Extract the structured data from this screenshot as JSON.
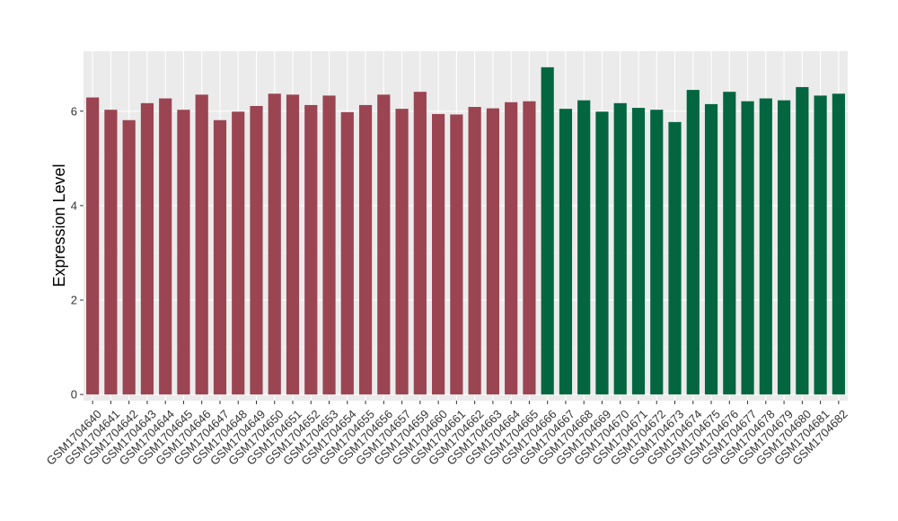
{
  "chart_data": {
    "type": "bar",
    "ylabel": "Expression Level",
    "xlabel": "",
    "ylim": [
      -0.13,
      7.27
    ],
    "yticks": [
      0,
      2,
      4,
      6
    ],
    "grid": true,
    "colors": {
      "panel_background": "#ebebeb",
      "grid_major": "#ffffff",
      "group_1": "#9b4452",
      "group_2": "#036641"
    },
    "categories": [
      "GSM1704640",
      "GSM1704641",
      "GSM1704642",
      "GSM1704643",
      "GSM1704644",
      "GSM1704645",
      "GSM1704646",
      "GSM1704647",
      "GSM1704648",
      "GSM1704649",
      "GSM1704650",
      "GSM1704651",
      "GSM1704652",
      "GSM1704653",
      "GSM1704654",
      "GSM1704655",
      "GSM1704656",
      "GSM1704657",
      "GSM1704659",
      "GSM1704660",
      "GSM1704661",
      "GSM1704662",
      "GSM1704663",
      "GSM1704664",
      "GSM1704665",
      "GSM1704666",
      "GSM1704667",
      "GSM1704668",
      "GSM1704669",
      "GSM1704670",
      "GSM1704671",
      "GSM1704672",
      "GSM1704673",
      "GSM1704674",
      "GSM1704675",
      "GSM1704676",
      "GSM1704677",
      "GSM1704678",
      "GSM1704679",
      "GSM1704680",
      "GSM1704681",
      "GSM1704682"
    ],
    "values": [
      6.29,
      6.03,
      5.81,
      6.17,
      6.27,
      6.03,
      6.35,
      5.81,
      5.99,
      6.11,
      6.37,
      6.35,
      6.13,
      6.33,
      5.98,
      6.13,
      6.35,
      6.05,
      6.41,
      5.94,
      5.93,
      6.09,
      6.06,
      6.19,
      6.21,
      6.93,
      6.05,
      6.23,
      5.99,
      6.17,
      6.07,
      6.03,
      5.77,
      6.45,
      6.15,
      6.41,
      6.21,
      6.27,
      6.23,
      6.51,
      6.33,
      6.37
    ],
    "groups": [
      1,
      1,
      1,
      1,
      1,
      1,
      1,
      1,
      1,
      1,
      1,
      1,
      1,
      1,
      1,
      1,
      1,
      1,
      1,
      1,
      1,
      1,
      1,
      1,
      1,
      2,
      2,
      2,
      2,
      2,
      2,
      2,
      2,
      2,
      2,
      2,
      2,
      2,
      2,
      2,
      2,
      2
    ]
  }
}
